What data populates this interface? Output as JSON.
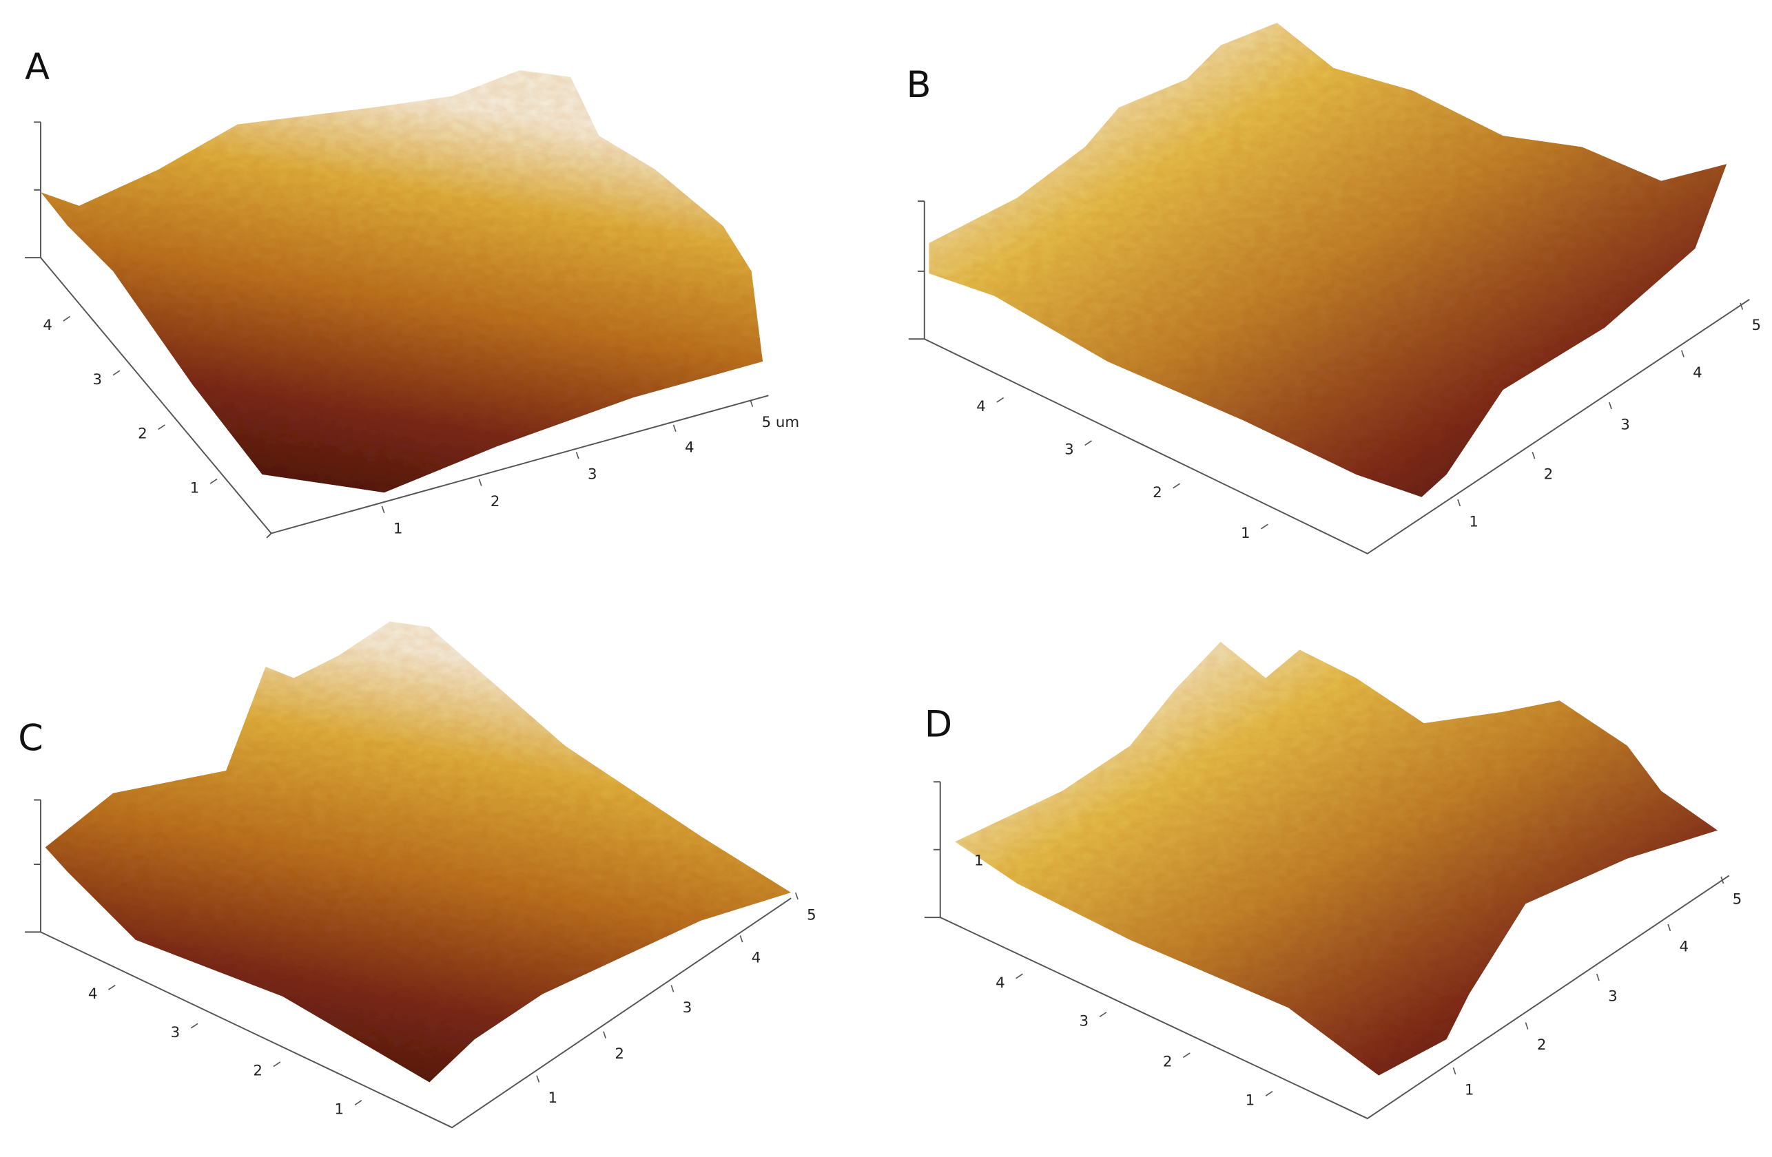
{
  "panels": [
    {
      "label": "A",
      "depth_ticks": [
        "4",
        "3",
        "2",
        "1"
      ],
      "width_ticks": [
        "1",
        "2",
        "3",
        "4",
        "5 um"
      ]
    },
    {
      "label": "B",
      "depth_ticks": [
        "4",
        "3",
        "2",
        "1"
      ],
      "width_ticks": [
        "1",
        "2",
        "3",
        "4",
        "5"
      ]
    },
    {
      "label": "C",
      "depth_ticks": [
        "4",
        "3",
        "2",
        "1"
      ],
      "width_ticks": [
        "1",
        "2",
        "3",
        "4",
        "5"
      ]
    },
    {
      "label": "D",
      "height_ticks": [
        "1"
      ],
      "depth_ticks": [
        "4",
        "3",
        "2",
        "1"
      ],
      "width_ticks": [
        "1",
        "2",
        "3",
        "4",
        "5"
      ]
    }
  ]
}
